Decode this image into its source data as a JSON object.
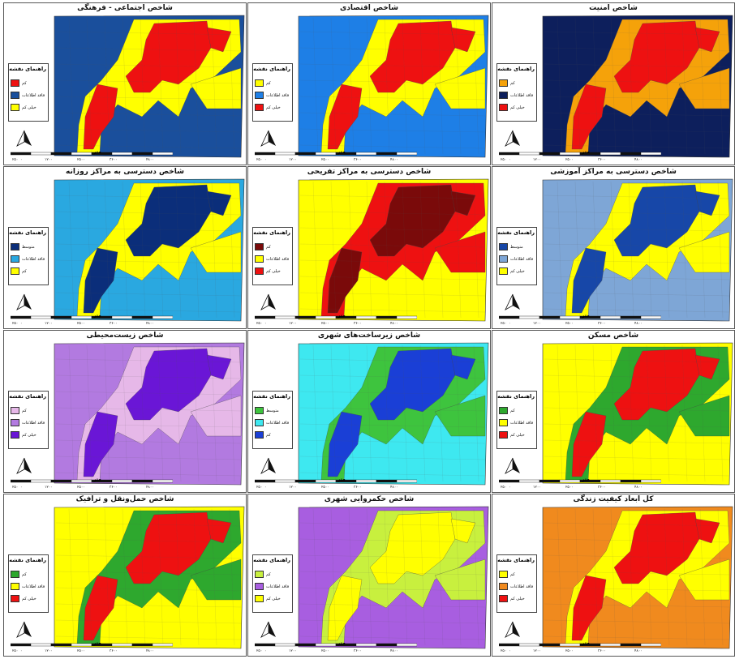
{
  "legend_title": "راهنمای نقشه",
  "scale_unit": "متر",
  "scale_ticks": [
    "۲۵۰",
    "۰",
    "۱۲۰۰",
    "۲۵۰۰",
    "۳۶۰۰",
    "۴۸۰۰"
  ],
  "panels": [
    {
      "title": "شاخص اجتماعی - فرهنگی",
      "bg": "#1a4f9c",
      "mid": "#ffff00",
      "hot": "#ee1111",
      "legend": [
        {
          "label": "کم",
          "color": "#ee1111"
        },
        {
          "label": "فاقد اطلاعات",
          "color": "#1a4f9c"
        },
        {
          "label": "خیلی کم",
          "color": "#ffff00"
        }
      ]
    },
    {
      "title": "شاخص اقتصادی",
      "bg": "#1e7fe6",
      "mid": "#ffff00",
      "hot": "#ee1111",
      "legend": [
        {
          "label": "کم",
          "color": "#ffff00"
        },
        {
          "label": "فاقد اطلاعات",
          "color": "#1e7fe6"
        },
        {
          "label": "خیلی کم",
          "color": "#ee1111"
        }
      ]
    },
    {
      "title": "شاخص امنیت",
      "bg": "#0d1f5c",
      "mid": "#f5a20a",
      "hot": "#ee1111",
      "legend": [
        {
          "label": "کم",
          "color": "#f5a20a"
        },
        {
          "label": "فاقد اطلاعات",
          "color": "#0d1f5c"
        },
        {
          "label": "خیلی کم",
          "color": "#ee1111"
        }
      ]
    },
    {
      "title": "شاخص دسترسی به مراکز روزانه",
      "bg": "#2aa8e0",
      "mid": "#ffff00",
      "hot": "#0b2e7a",
      "legend": [
        {
          "label": "متوسط",
          "color": "#0b2e7a"
        },
        {
          "label": "فاقد اطلاعات",
          "color": "#2aa8e0"
        },
        {
          "label": "کم",
          "color": "#ffff00"
        }
      ]
    },
    {
      "title": "شاخص دسترسی به مراکز تفریحی",
      "bg": "#ffff00",
      "mid": "#ee1111",
      "hot": "#7a0a0a",
      "legend": [
        {
          "label": "کم",
          "color": "#7a0a0a"
        },
        {
          "label": "فاقد اطلاعات",
          "color": "#ffff00"
        },
        {
          "label": "خیلی کم",
          "color": "#ee1111"
        }
      ]
    },
    {
      "title": "شاخص دسترسی به مراکز آموزشی",
      "bg": "#7ea6d6",
      "mid": "#ffff00",
      "hot": "#1747a8",
      "legend": [
        {
          "label": "متوسط",
          "color": "#1747a8"
        },
        {
          "label": "فاقد اطلاعات",
          "color": "#7ea6d6"
        },
        {
          "label": "خیلی کم",
          "color": "#ffff00"
        }
      ]
    },
    {
      "title": "شاخص زیست‌محیطی",
      "bg": "#b27ae0",
      "mid": "#e6b8e8",
      "hot": "#6a16d6",
      "legend": [
        {
          "label": "کم",
          "color": "#e6b8e8"
        },
        {
          "label": "فاقد اطلاعات",
          "color": "#b27ae0"
        },
        {
          "label": "خیلی کم",
          "color": "#6a16d6"
        }
      ]
    },
    {
      "title": "شاخص زیرساخت‌های شهری",
      "bg": "#3ee8f0",
      "mid": "#3ec43e",
      "hot": "#1a3fd6",
      "legend": [
        {
          "label": "متوسط",
          "color": "#3ec43e"
        },
        {
          "label": "فاقد اطلاعات",
          "color": "#3ee8f0"
        },
        {
          "label": "کم",
          "color": "#1a3fd6"
        }
      ]
    },
    {
      "title": "شاخص مسکن",
      "bg": "#ffff00",
      "mid": "#2ea82e",
      "hot": "#ee1111",
      "legend": [
        {
          "label": "کم",
          "color": "#2ea82e"
        },
        {
          "label": "فاقد اطلاعات",
          "color": "#ffff00"
        },
        {
          "label": "خیلی کم",
          "color": "#ee1111"
        }
      ]
    },
    {
      "title": "شاخص حمل‌ونقل و ترافیک",
      "bg": "#ffff00",
      "mid": "#2ea82e",
      "hot": "#ee1111",
      "legend": [
        {
          "label": "کم",
          "color": "#2ea82e"
        },
        {
          "label": "فاقد اطلاعات",
          "color": "#ffff00"
        },
        {
          "label": "خیلی کم",
          "color": "#ee1111"
        }
      ]
    },
    {
      "title": "شاخص حکمروایی شهری",
      "bg": "#a85ee0",
      "mid": "#c8f03e",
      "hot": "#ffff00",
      "legend": [
        {
          "label": "کم",
          "color": "#c8f03e"
        },
        {
          "label": "فاقد اطلاعات",
          "color": "#a85ee0"
        },
        {
          "label": "خیلی کم",
          "color": "#ffff00"
        }
      ]
    },
    {
      "title": "کل ابعاد کیفیت زندگی",
      "bg": "#f08a1e",
      "mid": "#ffff00",
      "hot": "#ee1111",
      "legend": [
        {
          "label": "کم",
          "color": "#ffff00"
        },
        {
          "label": "فاقد اطلاعات",
          "color": "#f08a1e"
        },
        {
          "label": "خیلی کم",
          "color": "#ee1111"
        }
      ]
    }
  ]
}
